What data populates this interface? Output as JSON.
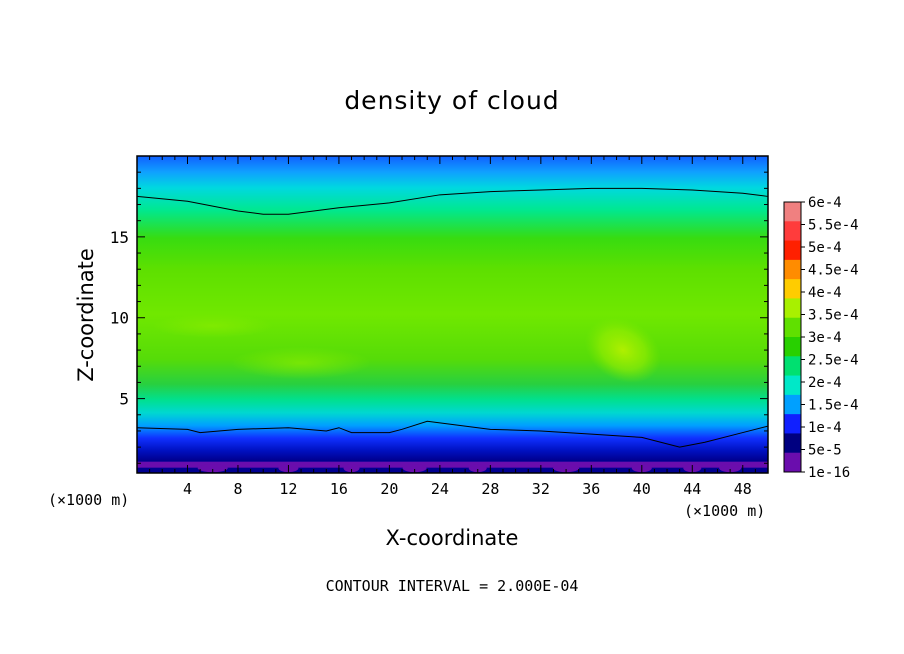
{
  "chart_data": {
    "type": "heatmap",
    "title": "density of cloud",
    "xlabel": "X-coordinate",
    "ylabel": "Z-coordinate",
    "x_unit": "(×1000 m)",
    "footer": "CONTOUR INTERVAL = 2.000E-04",
    "xlim": [
      0,
      50
    ],
    "ylim": [
      0.4,
      20
    ],
    "x_ticks": [
      4,
      8,
      12,
      16,
      20,
      24,
      28,
      32,
      36,
      40,
      44,
      48
    ],
    "y_ticks": [
      5,
      10,
      15
    ],
    "colorbar": {
      "labels": [
        "6e-4",
        "5.5e-4",
        "5e-4",
        "4.5e-4",
        "4e-4",
        "3.5e-4",
        "3e-4",
        "2.5e-4",
        "2e-4",
        "1.5e-4",
        "1e-4",
        "5e-5",
        "1e-16"
      ],
      "colors": [
        "#f08080",
        "#ff3c3c",
        "#ff2000",
        "#ff8c00",
        "#ffcc00",
        "#a8f000",
        "#60e000",
        "#28d000",
        "#00e070",
        "#00e8c8",
        "#00a0ff",
        "#1020ff",
        "#000080",
        "#6a0dad"
      ]
    },
    "contour_lines": [
      {
        "level": "2e-4",
        "x": [
          0,
          4,
          8,
          10,
          12,
          16,
          20,
          24,
          28,
          32,
          36,
          40,
          44,
          48,
          50
        ],
        "z": [
          17.5,
          17.2,
          16.6,
          16.4,
          16.4,
          16.8,
          17.1,
          17.6,
          17.8,
          17.9,
          18.0,
          18.0,
          17.9,
          17.7,
          17.5
        ]
      },
      {
        "level": "5e-5",
        "x": [
          0,
          4,
          5,
          8,
          12,
          15,
          16,
          17,
          20,
          21,
          23,
          25,
          28,
          32,
          36,
          40,
          42,
          43,
          45,
          48,
          50
        ],
        "z": [
          3.2,
          3.1,
          2.9,
          3.1,
          3.2,
          3.0,
          3.2,
          2.9,
          2.9,
          3.1,
          3.6,
          3.4,
          3.1,
          3.0,
          2.8,
          2.6,
          2.2,
          2.0,
          2.3,
          2.9,
          3.3
        ]
      }
    ],
    "hotspot": {
      "x": 38.5,
      "z": 8.0,
      "value_range": "3.5e-4 to 4e-4"
    }
  }
}
